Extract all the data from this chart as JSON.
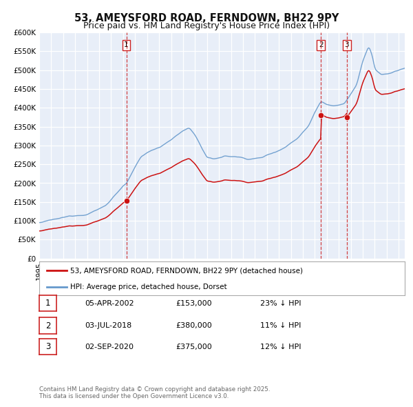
{
  "title": "53, AMEYSFORD ROAD, FERNDOWN, BH22 9PY",
  "subtitle": "Price paid vs. HM Land Registry's House Price Index (HPI)",
  "ylim": [
    0,
    600000
  ],
  "yticks": [
    0,
    50000,
    100000,
    150000,
    200000,
    250000,
    300000,
    350000,
    400000,
    450000,
    500000,
    550000,
    600000
  ],
  "xlim_start": 1995.0,
  "xlim_end": 2025.5,
  "background_color": "#e8eef8",
  "grid_color": "#ffffff",
  "hpi_color": "#6699cc",
  "price_color": "#cc1111",
  "sale_marker_color": "#cc1111",
  "vline_color": "#cc2222",
  "sale_points": [
    {
      "year": 2002.27,
      "price": 153000,
      "label": "1"
    },
    {
      "year": 2018.5,
      "price": 380000,
      "label": "2"
    },
    {
      "year": 2020.67,
      "price": 375000,
      "label": "3"
    }
  ],
  "vline_years": [
    2002.27,
    2018.5,
    2020.67
  ],
  "legend_price_label": "53, AMEYSFORD ROAD, FERNDOWN, BH22 9PY (detached house)",
  "legend_hpi_label": "HPI: Average price, detached house, Dorset",
  "table_rows": [
    {
      "num": "1",
      "date": "05-APR-2002",
      "price": "£153,000",
      "pct": "23% ↓ HPI"
    },
    {
      "num": "2",
      "date": "03-JUL-2018",
      "price": "£380,000",
      "pct": "11% ↓ HPI"
    },
    {
      "num": "3",
      "date": "02-SEP-2020",
      "price": "£375,000",
      "pct": "12% ↓ HPI"
    }
  ],
  "footer": "Contains HM Land Registry data © Crown copyright and database right 2025.\nThis data is licensed under the Open Government Licence v3.0.",
  "title_fontsize": 10.5,
  "subtitle_fontsize": 9,
  "tick_fontsize": 7.5,
  "legend_fontsize": 8
}
